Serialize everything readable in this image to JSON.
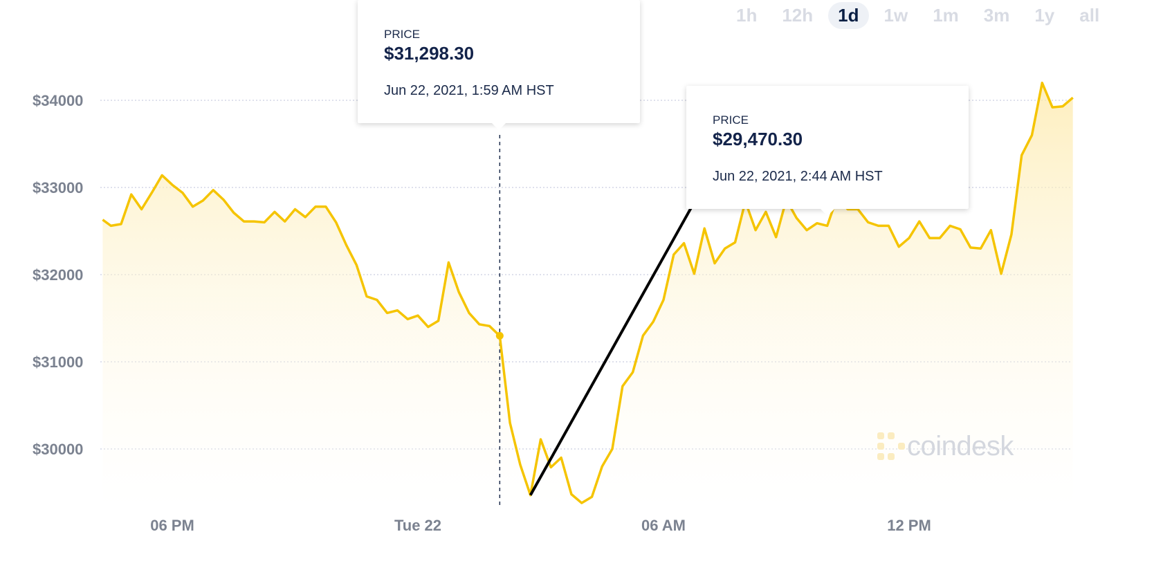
{
  "time_ranges": {
    "options": [
      "1h",
      "12h",
      "1d",
      "1w",
      "1m",
      "3m",
      "1y",
      "all"
    ],
    "selected": "1d"
  },
  "tooltips": [
    {
      "label": "PRICE",
      "price": "$31,298.30",
      "date": "Jun 22, 2021, 1:59 AM HST"
    },
    {
      "label": "PRICE",
      "price": "$29,470.30",
      "date": "Jun 22, 2021, 2:44 AM HST"
    }
  ],
  "watermark": {
    "text": "coindesk"
  },
  "colors": {
    "line": "#f5c400",
    "fill": "#fff6d6",
    "text": "#13234a",
    "axis": "#7b8290"
  },
  "chart_data": {
    "type": "area",
    "title": "",
    "xlabel": "",
    "ylabel": "",
    "y_ticks": [
      {
        "value": 30000,
        "label": "$30000"
      },
      {
        "value": 31000,
        "label": "$31000"
      },
      {
        "value": 32000,
        "label": "$32000"
      },
      {
        "value": 33000,
        "label": "$33000"
      },
      {
        "value": 34000,
        "label": "$34000"
      }
    ],
    "x_ticks": [
      {
        "hour": 18,
        "label": "06 PM"
      },
      {
        "hour": 24,
        "label": "Tue 22"
      },
      {
        "hour": 30,
        "label": "06 AM"
      },
      {
        "hour": 36,
        "label": "12 PM"
      }
    ],
    "xlim": [
      16.3,
      40.0
    ],
    "ylim": [
      29380,
      34000
    ],
    "grid": "horizontal-dotted",
    "series": [
      {
        "x": [
          16.3,
          16.5,
          16.75,
          17.0,
          17.25,
          17.5,
          17.75,
          18.0,
          18.25,
          18.5,
          18.75,
          19.0,
          19.25,
          19.5,
          19.75,
          20.0,
          20.25,
          20.5,
          20.75,
          21.0,
          21.25,
          21.5,
          21.75,
          22.0,
          22.25,
          22.5,
          22.75,
          23.0,
          23.25,
          23.5,
          23.75,
          24.0,
          24.25,
          24.5,
          24.75,
          25.0,
          25.25,
          25.5,
          25.75,
          26.0,
          26.25,
          26.5,
          26.75,
          27.0,
          27.25,
          27.5,
          27.75,
          28.0,
          28.25,
          28.5,
          28.75,
          29.0,
          29.25,
          29.5,
          29.75,
          30.0,
          30.25,
          30.5,
          30.75,
          31.0,
          31.25,
          31.5,
          31.75,
          32.0,
          32.25,
          32.5,
          32.75,
          33.0,
          33.25,
          33.5,
          33.75,
          34.0,
          34.25,
          34.5,
          34.75,
          35.0,
          35.25,
          35.5,
          35.75,
          36.0,
          36.25,
          36.5,
          36.75,
          37.0,
          37.25,
          37.5,
          37.75,
          38.0,
          38.25,
          38.5,
          38.75,
          39.0,
          39.25,
          39.5,
          39.75,
          40.0
        ],
        "y": [
          32630,
          32560,
          32580,
          32920,
          32750,
          32940,
          33140,
          33030,
          32940,
          32780,
          32850,
          32970,
          32860,
          32710,
          32610,
          32610,
          32600,
          32720,
          32610,
          32750,
          32660,
          32780,
          32780,
          32600,
          32340,
          32110,
          31750,
          31710,
          31560,
          31590,
          31490,
          31530,
          31400,
          31470,
          32140,
          31800,
          31560,
          31430,
          31410,
          31298,
          30300,
          29820,
          29470,
          30110,
          29790,
          29900,
          29480,
          29380,
          29450,
          29800,
          30000,
          30720,
          30880,
          31300,
          31460,
          31710,
          32230,
          32360,
          32010,
          32530,
          32130,
          32300,
          32370,
          32840,
          32510,
          32720,
          32430,
          32860,
          32650,
          32510,
          32590,
          32560,
          32900,
          32750,
          32750,
          32600,
          32560,
          32560,
          32320,
          32420,
          32610,
          32420,
          32420,
          32560,
          32520,
          32310,
          32300,
          32510,
          32010,
          32460,
          33370,
          33600,
          34200,
          33920,
          33930,
          34030
        ]
      }
    ],
    "markers": [
      {
        "x": 26.0,
        "y": 31298.3
      }
    ],
    "crosshair_x": 26.0,
    "annotation_line": {
      "from": {
        "x": 26.75,
        "y": 29470
      },
      "to": {
        "x": 30.75,
        "y": 32830
      }
    }
  }
}
